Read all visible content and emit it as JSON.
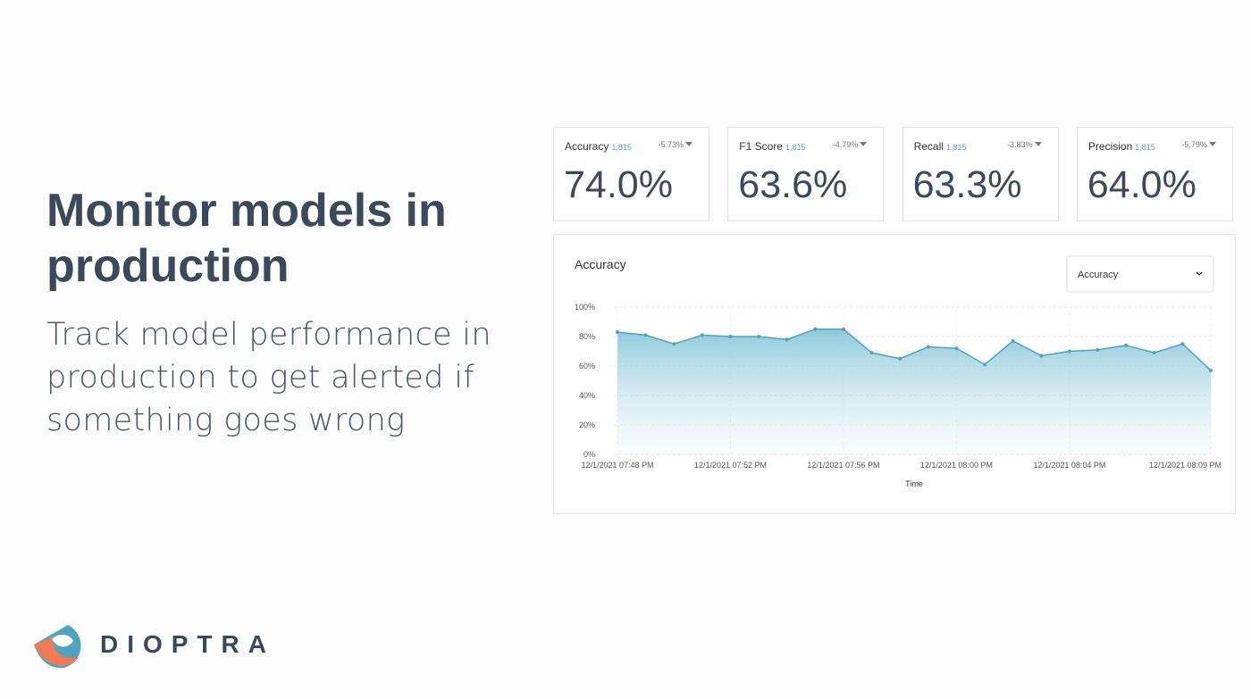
{
  "slide": {
    "title_lines": [
      "Monitor models in",
      "production"
    ],
    "subtitle_lines": [
      "Track model performance in",
      "production to get alerted if",
      "something goes wrong"
    ],
    "brand": "DIOPTRA"
  },
  "cards": [
    {
      "name": "Accuracy",
      "count": "1,815",
      "delta": "-5.73%",
      "value": "74.0%"
    },
    {
      "name": "F1 Score",
      "count": "1,815",
      "delta": "-4.79%",
      "value": "63.6%"
    },
    {
      "name": "Recall",
      "count": "1,815",
      "delta": "-3.83%",
      "value": "63.3%"
    },
    {
      "name": "Precision",
      "count": "1,815",
      "delta": "-5.79%",
      "value": "64.0%"
    }
  ],
  "chart_data": {
    "type": "area",
    "title": "Accuracy",
    "dropdown": "Accuracy",
    "x_label": "Time",
    "categories": [
      "12/1/2021 07:48 PM",
      null,
      null,
      null,
      "12/1/2021 07:52 PM",
      null,
      null,
      null,
      "12/1/2021 07:56 PM",
      null,
      null,
      null,
      "12/1/2021 08:00 PM",
      null,
      null,
      null,
      "12/1/2021 08:04 PM",
      null,
      null,
      null,
      null,
      "12/1/2021 08:09 PM"
    ],
    "values": [
      83,
      81,
      75,
      81,
      80,
      80,
      78,
      85,
      85,
      69,
      65,
      73,
      72,
      61,
      77,
      67,
      70,
      71,
      74,
      69,
      75,
      57
    ],
    "color": "#4fa3bd",
    "ylim": [
      0,
      100
    ],
    "yticks": [
      {
        "value": 0,
        "label": "0%"
      },
      {
        "value": 20,
        "label": "20%"
      },
      {
        "value": 40,
        "label": "40%"
      },
      {
        "value": 60,
        "label": "60%"
      },
      {
        "value": 80,
        "label": "80%"
      },
      {
        "value": 100,
        "label": "100%"
      }
    ],
    "grid": true
  }
}
